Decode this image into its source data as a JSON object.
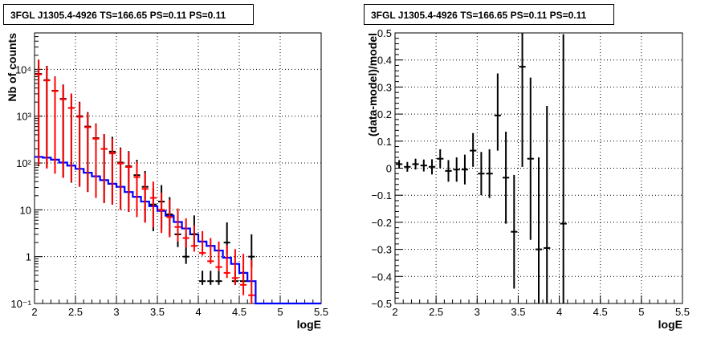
{
  "chart_data": [
    {
      "type": "scatter",
      "title": "3FGL J1305.4-4926 TS=166.65 PS=0.11 PS=0.11",
      "xlabel": "logE",
      "ylabel": "Nb of counts",
      "xlim": [
        2,
        5.5
      ],
      "ylim": [
        0.1,
        60000
      ],
      "yscale": "log",
      "grid": true,
      "x_ticks": [
        "2",
        "2.5",
        "3",
        "3.5",
        "4",
        "4.5",
        "5",
        "5.5"
      ],
      "y_ticks": [
        "10⁻¹",
        "1",
        "10",
        "10²",
        "10³",
        "10⁴"
      ],
      "series": [
        {
          "kind": "histogram",
          "color": "#0000ff",
          "bin_edges": [
            2.0,
            2.1,
            2.2,
            2.3,
            2.4,
            2.5,
            2.6,
            2.7,
            2.8,
            2.9,
            3.0,
            3.1,
            3.2,
            3.3,
            3.4,
            3.5,
            3.6,
            3.7,
            3.8,
            3.9,
            4.0,
            4.1,
            4.2,
            4.3,
            4.4,
            4.5,
            4.6,
            4.7,
            4.8,
            4.9,
            5.0,
            5.1,
            5.2,
            5.3,
            5.4,
            5.5
          ],
          "values": [
            135,
            130,
            118,
            102,
            88,
            75,
            62,
            52,
            43,
            36,
            31,
            24,
            19,
            15,
            12,
            9.5,
            7.5,
            5.5,
            4,
            3,
            2.1,
            1.7,
            1.35,
            0.95,
            0.7,
            0.45,
            0.3,
            0.1,
            0.1,
            0.1,
            0.1,
            0.1,
            0.1,
            0.1,
            0.1
          ]
        },
        {
          "kind": "points",
          "color": "#000000",
          "x": [
            2.05,
            2.15,
            2.25,
            2.35,
            2.45,
            2.55,
            2.65,
            2.75,
            2.85,
            2.95,
            3.05,
            3.15,
            3.25,
            3.35,
            3.45,
            3.55,
            3.65,
            3.75,
            3.85,
            3.95,
            4.05,
            4.15,
            4.25,
            4.35,
            4.45,
            4.55,
            4.65
          ],
          "y": [
            8000,
            5900,
            3500,
            2350,
            1500,
            1000,
            600,
            340,
            200,
            175,
            102,
            85,
            55,
            31,
            13,
            15,
            8,
            3,
            1,
            3,
            0.3,
            0.3,
            0.3,
            2,
            0.3,
            0.3,
            1
          ],
          "yerr_low": [
            7915,
            5820,
            3440,
            2300,
            1462,
            968,
            576,
            322,
            186,
            162,
            92,
            76,
            48,
            25.5,
            9.5,
            11.2,
            5.3,
            1.4,
            0.3,
            1.4,
            0.05,
            0.05,
            0.05,
            0.9,
            0.05,
            0.05,
            0.4
          ],
          "yerr_high": [
            8085,
            5980,
            3560,
            2400,
            1538,
            1032,
            624,
            358,
            214,
            188,
            112,
            94,
            62,
            36.5,
            16.5,
            18.8,
            10.7,
            4.6,
            2.2,
            4.6,
            0.2,
            0.2,
            0.2,
            3.4,
            0.2,
            0.2,
            2.0
          ]
        },
        {
          "kind": "points",
          "color": "#ff0000",
          "x": [
            2.05,
            2.15,
            2.25,
            2.35,
            2.45,
            2.55,
            2.65,
            2.75,
            2.85,
            2.95,
            3.05,
            3.15,
            3.25,
            3.35,
            3.45,
            3.55,
            3.65,
            3.75,
            3.85,
            3.95,
            4.05,
            4.15,
            4.25,
            4.35,
            4.45,
            4.55,
            4.65
          ],
          "y": [
            7800,
            5800,
            3450,
            2300,
            1500,
            970,
            580,
            330,
            200,
            160,
            98,
            82,
            50,
            28,
            18,
            10,
            7,
            4.3,
            2.5,
            1.7,
            1.2,
            0.8,
            0.6,
            0.45,
            0.35,
            0.25,
            0.15
          ],
          "yerr_low": [
            7711,
            5724,
            3391,
            2252,
            1461,
            939,
            556,
            312,
            186,
            147,
            88,
            73,
            43,
            22.7,
            13.8,
            6.8,
            4.4,
            2.2,
            0.95,
            0.42,
            0.15,
            0.1,
            0.1,
            0.1,
            0.1,
            0.1,
            0.1
          ],
          "yerr_high": [
            7888,
            5876,
            3509,
            2348,
            1539,
            1001,
            604,
            348,
            214,
            173,
            108,
            91,
            57,
            33.3,
            22.2,
            13.2,
            9.6,
            6.4,
            4.1,
            3.0,
            2.3,
            1.7,
            1.5,
            1.3,
            1.1,
            0.9,
            0.7
          ]
        }
      ]
    },
    {
      "type": "scatter",
      "title": "3FGL J1305.4-4926 TS=166.65 PS=0.11 PS=0.11",
      "xlabel": "logE",
      "ylabel": "(data-model)/model",
      "xlim": [
        2,
        5.5
      ],
      "ylim": [
        -0.5,
        0.5
      ],
      "grid": true,
      "x_ticks": [
        "2",
        "2.5",
        "3",
        "3.5",
        "4",
        "4.5",
        "5",
        "5.5"
      ],
      "y_ticks": [
        "−0.5",
        "−0.4",
        "−0.3",
        "−0.2",
        "−0.1",
        "0",
        "0.1",
        "0.2",
        "0.3",
        "0.4",
        "0.5"
      ],
      "series": [
        {
          "kind": "points",
          "color": "#000000",
          "x": [
            2.05,
            2.15,
            2.25,
            2.35,
            2.45,
            2.55,
            2.65,
            2.75,
            2.85,
            2.95,
            3.05,
            3.15,
            3.25,
            3.35,
            3.45,
            3.55,
            3.65,
            3.75,
            3.85,
            4.05
          ],
          "y": [
            0.015,
            0.005,
            0.015,
            0.01,
            0.005,
            0.035,
            -0.01,
            -0.005,
            -0.005,
            0.065,
            -0.02,
            -0.02,
            0.195,
            -0.035,
            -0.235,
            0.375,
            0.035,
            -0.3,
            -0.295,
            -0.205
          ],
          "yerr_low": [
            0.015,
            0.018,
            0.02,
            0.022,
            0.028,
            0.035,
            0.04,
            0.045,
            0.055,
            0.06,
            0.08,
            0.09,
            0.13,
            0.17,
            0.21,
            0.37,
            0.3,
            0.2,
            0.21,
            0.3
          ],
          "yerr_high": [
            0.015,
            0.018,
            0.02,
            0.022,
            0.028,
            0.035,
            0.04,
            0.045,
            0.055,
            0.065,
            0.08,
            0.09,
            0.155,
            0.17,
            0.21,
            0.125,
            0.3,
            0.34,
            0.525,
            0.7
          ]
        }
      ]
    }
  ]
}
